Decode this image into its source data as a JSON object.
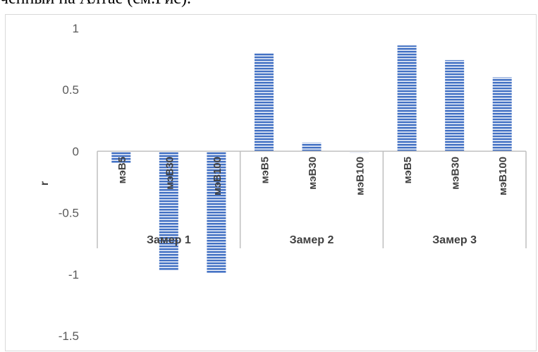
{
  "top_text": "ченный на Алтае (см.Рис).",
  "colors": {
    "bar": "#4472c4",
    "stripe": "#ffffff",
    "axis": "#bfbfbf",
    "text": "#595959"
  },
  "chart_data": {
    "type": "bar",
    "title": "",
    "xlabel": "",
    "ylabel": "r",
    "ylim": [
      -1.5,
      1
    ],
    "yticks": [
      1,
      0.5,
      0,
      -0.5,
      -1,
      -1.5
    ],
    "ytick_labels": [
      "1",
      "0.5",
      "0",
      "-0.5",
      "-1",
      "-1.5"
    ],
    "groups": [
      {
        "name": "Замер 1",
        "categories": [
          "мэВ5",
          "мэВ30",
          "мэВ100"
        ],
        "values": [
          -0.1,
          -0.97,
          -0.99
        ]
      },
      {
        "name": "Замер 2",
        "categories": [
          "мэВ5",
          "мэВ30",
          "мэВ100"
        ],
        "values": [
          0.8,
          0.07,
          -0.01
        ]
      },
      {
        "name": "Замер 3",
        "categories": [
          "мэВ5",
          "мэВ30",
          "мэВ100"
        ],
        "values": [
          0.86,
          0.74,
          0.6
        ]
      }
    ],
    "grid": false,
    "legend": "none"
  }
}
